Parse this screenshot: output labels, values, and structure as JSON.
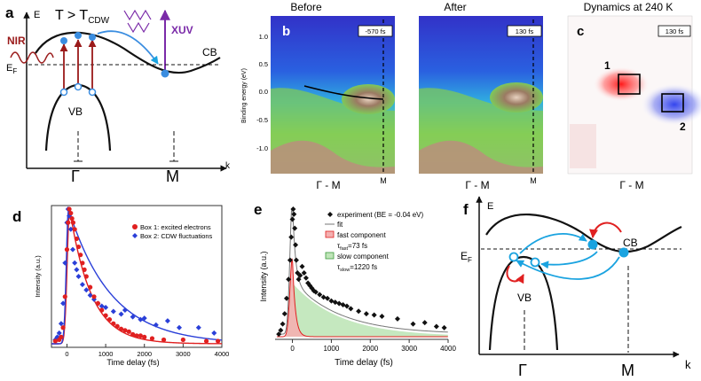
{
  "panel_a": {
    "label": "a",
    "axis_e": "E",
    "axis_k": "k",
    "condition": "T > T",
    "condition_sub": "CDW",
    "nir": "NIR",
    "xuv": "XUV",
    "ef": "E",
    "ef_sub": "F",
    "cb": "CB",
    "vb": "VB",
    "gamma": "Γ",
    "m": "M"
  },
  "panel_b": {
    "label": "b",
    "title_before": "Before",
    "title_after": "After",
    "ylabel": "Binding energy (eV)",
    "yticks": [
      "1.0",
      "0.5",
      "0.0",
      "-0.5",
      "-1.0"
    ],
    "time_before": "-570 fs",
    "time_after": "130 fs",
    "xlabel": "Γ - M",
    "m_label": "M"
  },
  "panel_c": {
    "label": "c",
    "title": "Dynamics at 240 K",
    "time": "130 fs",
    "box1": "1",
    "box2": "2",
    "xlabel": "Γ - M"
  },
  "panel_d": {
    "label": "d",
    "ylabel": "Intensity (a.u.)",
    "xlabel": "Time delay (fs)",
    "xticks": [
      "0",
      "1000",
      "2000",
      "3000",
      "4000"
    ],
    "legend": [
      "Box 1: excited electrons",
      "Box 2: CDW fluctuations"
    ]
  },
  "panel_e": {
    "label": "e",
    "ylabel": "Intensity (a.u.)",
    "xlabel": "Time delay (fs)",
    "xticks": [
      "0",
      "1000",
      "2000",
      "3000",
      "4000"
    ],
    "legend_experiment": "experiment (BE = -0.04 eV)",
    "legend_fit": "fit",
    "legend_fast": "fast component",
    "tau_fast_label": "τ",
    "tau_fast_sub": "fast",
    "tau_fast_value": "=73 fs",
    "legend_slow": "slow component",
    "tau_slow_label": "τ",
    "tau_slow_sub": "slow",
    "tau_slow_value": "=1220 fs"
  },
  "panel_f": {
    "label": "f",
    "axis_e": "E",
    "axis_k": "k",
    "cb": "CB",
    "vb": "VB",
    "ef": "E",
    "ef_sub": "F",
    "gamma": "Γ",
    "m": "M"
  },
  "colors": {
    "red": "#e02020",
    "blue": "#2a3fd8",
    "purple": "#7a2aa8",
    "darkred": "#9a1a1a",
    "cyan": "#1aa3e0",
    "fast_fill": "#f4b0b0",
    "slow_fill": "#bfe5b8"
  },
  "chart_data": [
    {
      "type": "scatter",
      "panel": "d",
      "xlabel": "Time delay (fs)",
      "ylabel": "Intensity (a.u.)",
      "xlim": [
        -400,
        4000
      ],
      "series": [
        {
          "name": "Box 1: excited electrons",
          "color": "#e02020",
          "x": [
            -300,
            -200,
            -150,
            -100,
            -50,
            0,
            30,
            60,
            100,
            130,
            160,
            200,
            250,
            300,
            350,
            400,
            450,
            500,
            600,
            700,
            800,
            900,
            1000,
            1100,
            1200,
            1300,
            1400,
            1500,
            1600,
            1700,
            1800,
            1900,
            2000,
            2200,
            2500,
            3000,
            3600,
            3900
          ],
          "y": [
            0.02,
            0.03,
            0.05,
            0.12,
            0.35,
            0.7,
            0.9,
            1.0,
            0.97,
            0.93,
            0.9,
            0.85,
            0.78,
            0.72,
            0.66,
            0.6,
            0.55,
            0.5,
            0.42,
            0.35,
            0.3,
            0.25,
            0.21,
            0.18,
            0.15,
            0.13,
            0.11,
            0.1,
            0.09,
            0.07,
            0.06,
            0.06,
            0.05,
            0.04,
            0.03,
            0.03,
            0.02,
            0.02
          ]
        },
        {
          "name": "Box 2: CDW fluctuations",
          "color": "#2a3fd8",
          "x": [
            -300,
            -250,
            -200,
            -150,
            -100,
            -50,
            0,
            30,
            60,
            100,
            150,
            200,
            250,
            300,
            400,
            500,
            600,
            700,
            800,
            900,
            1000,
            1200,
            1400,
            1500,
            1700,
            1900,
            2000,
            2300,
            2600,
            2900,
            3400,
            3800
          ],
          "y": [
            0.03,
            0.05,
            0.08,
            0.15,
            0.3,
            0.6,
            0.9,
            1.0,
            0.95,
            0.85,
            0.7,
            0.6,
            0.55,
            0.5,
            0.44,
            0.4,
            0.36,
            0.33,
            0.3,
            0.28,
            0.27,
            0.24,
            0.22,
            0.25,
            0.2,
            0.18,
            0.19,
            0.14,
            0.17,
            0.12,
            0.12,
            0.08
          ]
        }
      ]
    },
    {
      "type": "scatter",
      "panel": "e",
      "xlabel": "Time delay (fs)",
      "ylabel": "Intensity (a.u.)",
      "xlim": [
        -400,
        4000
      ],
      "series": [
        {
          "name": "experiment (BE = -0.04 eV)",
          "x": [
            -350,
            -300,
            -250,
            -200,
            -150,
            -100,
            -60,
            -30,
            0,
            20,
            40,
            60,
            80,
            100,
            130,
            160,
            200,
            250,
            300,
            350,
            400,
            450,
            500,
            550,
            600,
            700,
            800,
            900,
            1000,
            1100,
            1200,
            1300,
            1400,
            1500,
            1700,
            1900,
            2100,
            2300,
            2700,
            3100,
            3400,
            3700,
            3900
          ],
          "y": [
            0.02,
            0.05,
            0.1,
            0.18,
            0.3,
            0.45,
            0.6,
            0.78,
            0.92,
            1.0,
            0.96,
            0.85,
            0.72,
            0.6,
            0.5,
            0.45,
            0.48,
            0.55,
            0.5,
            0.46,
            0.42,
            0.4,
            0.38,
            0.36,
            0.35,
            0.33,
            0.31,
            0.3,
            0.28,
            0.27,
            0.26,
            0.25,
            0.24,
            0.22,
            0.2,
            0.18,
            0.17,
            0.16,
            0.14,
            0.1,
            0.11,
            0.08,
            0.07
          ]
        },
        {
          "name": "fast component",
          "tau_fs": 73
        },
        {
          "name": "slow component",
          "tau_fs": 1220
        }
      ]
    }
  ]
}
